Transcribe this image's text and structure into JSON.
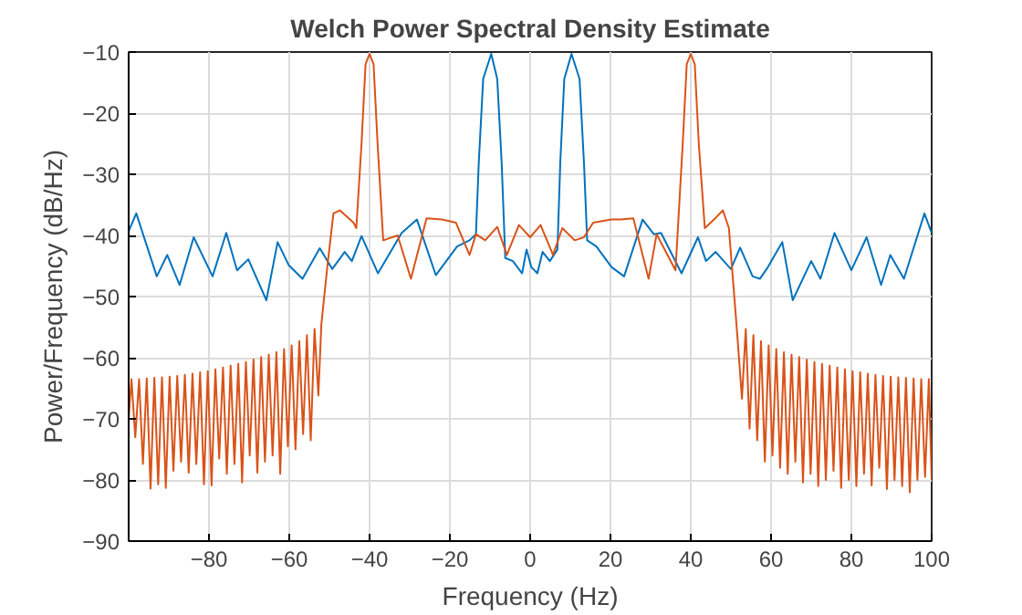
{
  "chart_data": {
    "type": "line",
    "title": "Welch Power Spectral Density Estimate",
    "xlabel": "Frequency (Hz)",
    "ylabel": "Power/Frequency (dB/Hz)",
    "xlim": [
      -100,
      100
    ],
    "ylim": [
      -90,
      -10
    ],
    "xticks": [
      -80,
      -60,
      -40,
      -20,
      0,
      20,
      40,
      60,
      80,
      100
    ],
    "yticks": [
      -90,
      -80,
      -70,
      -60,
      -50,
      -40,
      -30,
      -20,
      -10
    ],
    "grid": true,
    "series": [
      {
        "color": "#0072bd",
        "x": [
          -100,
          -98.1,
          -93,
          -90.4,
          -87.3,
          -83.8,
          -79.1,
          -75.7,
          -73,
          -70.2,
          -65.7,
          -62.9,
          -60.1,
          -56.7,
          -52.4,
          -49.3,
          -46.2,
          -44.4,
          -42,
          -37.9,
          -32,
          -28.2,
          -23.5,
          -18.2,
          -15.1,
          -13.5,
          -12.8,
          -11.7,
          -9.7,
          -8.2,
          -7.1,
          -6.2,
          -4.3,
          -2,
          -0.9,
          0.3,
          1.8,
          3.1,
          4.9,
          6.8,
          7.5,
          8.5,
          10.3,
          12.3,
          13.4,
          14.2,
          16.5,
          20.3,
          23.4,
          28,
          30.8,
          32.6,
          37.7,
          41.8,
          43.8,
          46.2,
          50,
          52.3,
          55.4,
          57.2,
          59.2,
          62.8,
          65.4,
          70,
          72.3,
          75.8,
          80,
          83.8,
          87.4,
          89.7,
          93.1,
          98.2,
          100
        ],
        "values": [
          -39.3,
          -36.4,
          -46.7,
          -43.2,
          -48.1,
          -40.3,
          -46.7,
          -39.6,
          -45.7,
          -43.9,
          -50.6,
          -41.1,
          -44.9,
          -47.1,
          -42.1,
          -45.5,
          -42.7,
          -44.2,
          -40.1,
          -46.2,
          -39.6,
          -37.4,
          -46.5,
          -41.8,
          -40.8,
          -39.8,
          -28.1,
          -14.4,
          -10.3,
          -14.4,
          -28.1,
          -43.7,
          -44.2,
          -46.2,
          -42.3,
          -45.2,
          -46.2,
          -42.7,
          -44.2,
          -42.3,
          -28.1,
          -14.4,
          -10.3,
          -14.4,
          -28.1,
          -40.8,
          -41.8,
          -45.2,
          -46.7,
          -37.4,
          -39.8,
          -39.6,
          -46.2,
          -40.3,
          -44.2,
          -42.7,
          -45.5,
          -42,
          -46.7,
          -47.1,
          -45.2,
          -41.1,
          -50.6,
          -44.2,
          -47.1,
          -39.6,
          -45.7,
          -40.3,
          -48.1,
          -43.2,
          -47.1,
          -36.4,
          -39.6
        ]
      },
      {
        "color": "#d95319",
        "x": [
          -100,
          -99.3,
          -98.35,
          -97.4,
          -96.45,
          -95.5,
          -94.55,
          -93.6,
          -92.65,
          -91.7,
          -90.75,
          -89.8,
          -88.85,
          -87.9,
          -86.95,
          -86,
          -85.05,
          -84.1,
          -83.15,
          -82.2,
          -81.25,
          -80.3,
          -79.35,
          -78.4,
          -77.45,
          -76.5,
          -75.55,
          -74.6,
          -73.65,
          -72.7,
          -71.75,
          -70.8,
          -69.85,
          -68.9,
          -67.95,
          -67,
          -66.05,
          -65.1,
          -64.15,
          -63.2,
          -62.25,
          -61.3,
          -60.35,
          -59.4,
          -58.45,
          -57.5,
          -56.55,
          -55.6,
          -54.65,
          -53.7,
          -52.75,
          -52,
          -50.5,
          -49,
          -47.4,
          -44,
          -43.3,
          -42,
          -41,
          -40,
          -39,
          -38,
          -36.6,
          -33,
          -29.7,
          -25.8,
          -22,
          -18.5,
          -15.1,
          -13.5,
          -11.2,
          -8.2,
          -5.8,
          -2.8,
          0,
          2.6,
          5.7,
          8,
          11.1,
          13.4,
          15.7,
          20.3,
          22.6,
          25.7,
          29.5,
          31.5,
          34.6,
          36.2,
          38,
          39,
          40,
          41,
          42,
          43.5,
          45.8,
          48,
          49.5,
          51.5,
          52.75,
          53.7,
          54.65,
          55.6,
          56.55,
          57.5,
          58.45,
          59.4,
          60.35,
          61.3,
          62.25,
          63.2,
          64.15,
          65.1,
          66.05,
          67,
          67.95,
          68.9,
          69.85,
          70.8,
          71.75,
          72.7,
          73.65,
          74.6,
          75.55,
          76.5,
          77.45,
          78.4,
          79.35,
          80.3,
          81.25,
          82.2,
          83.15,
          84.1,
          85.05,
          86,
          86.95,
          87.9,
          88.85,
          89.8,
          90.75,
          91.7,
          92.65,
          93.6,
          94.55,
          95.5,
          96.45,
          97.4,
          98.35,
          99.3,
          100
        ],
        "values": [
          -70,
          -63.5,
          -73,
          -63.5,
          -77.4,
          -63.4,
          -81.4,
          -63.3,
          -80.7,
          -63.2,
          -81.3,
          -63.1,
          -78.5,
          -63,
          -77,
          -62.8,
          -78.8,
          -62.6,
          -77.4,
          -62.4,
          -80.7,
          -62.2,
          -80.9,
          -61.9,
          -76.5,
          -61.6,
          -79,
          -61.3,
          -77.4,
          -61,
          -80.4,
          -60.7,
          -76,
          -60.3,
          -78.8,
          -59.9,
          -77,
          -59.5,
          -76,
          -59.1,
          -79,
          -58.6,
          -74.5,
          -58,
          -75,
          -57.3,
          -72.5,
          -56.3,
          -73.5,
          -55.3,
          -66.2,
          -54.5,
          -45,
          -36.4,
          -35.9,
          -37.9,
          -38.8,
          -25,
          -12,
          -10.3,
          -12,
          -25,
          -40.8,
          -40,
          -47.1,
          -37.2,
          -37.4,
          -37.9,
          -43.2,
          -39.8,
          -40.8,
          -38.6,
          -43.2,
          -38.3,
          -40.3,
          -38.3,
          -43.2,
          -38.8,
          -40.8,
          -40.3,
          -37.9,
          -37.4,
          -37.4,
          -37.2,
          -47.1,
          -39.8,
          -43.7,
          -45.7,
          -25,
          -12,
          -10.3,
          -12,
          -25,
          -38.8,
          -37.4,
          -35.9,
          -38.8,
          -55.5,
          -66.7,
          -55.3,
          -71.6,
          -56.3,
          -73.5,
          -57.3,
          -77,
          -58,
          -76,
          -58.6,
          -78,
          -59.1,
          -79,
          -59.5,
          -77,
          -59.9,
          -80.4,
          -60.3,
          -79,
          -60.7,
          -81,
          -61,
          -80,
          -61.3,
          -78.5,
          -61.6,
          -81.3,
          -61.9,
          -80,
          -62.2,
          -81,
          -62.4,
          -79,
          -62.6,
          -80.9,
          -62.8,
          -78,
          -63,
          -81.5,
          -63.1,
          -80,
          -63.2,
          -81,
          -63.3,
          -82,
          -63.4,
          -80,
          -63.5,
          -79.5,
          -63.5,
          -80
        ]
      }
    ]
  }
}
